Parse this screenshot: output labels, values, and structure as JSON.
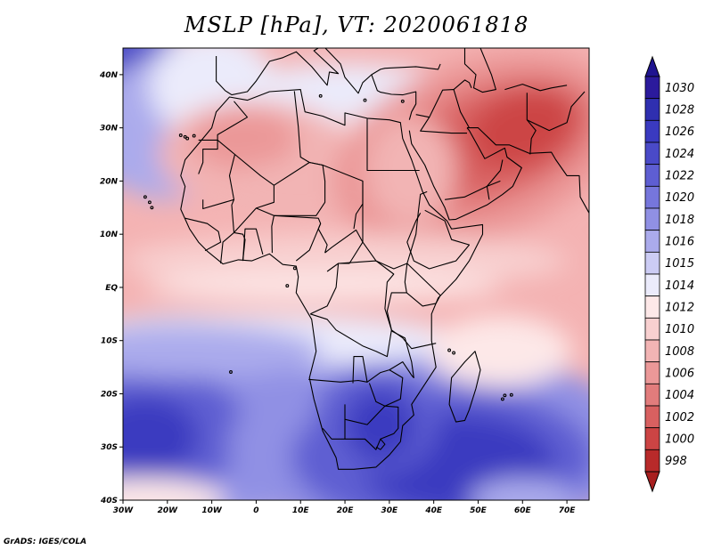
{
  "title": "MSLP [hPa], VT: 2020061818",
  "footer": "GrADS: IGES/COLA",
  "axes": {
    "lat_ticks": [
      {
        "value": 40,
        "label": "40N"
      },
      {
        "value": 30,
        "label": "30N"
      },
      {
        "value": 20,
        "label": "20N"
      },
      {
        "value": 10,
        "label": "10N"
      },
      {
        "value": 0,
        "label": "EQ"
      },
      {
        "value": -10,
        "label": "10S"
      },
      {
        "value": -20,
        "label": "20S"
      },
      {
        "value": -30,
        "label": "30S"
      },
      {
        "value": -40,
        "label": "40S"
      }
    ],
    "lon_ticks": [
      {
        "value": -30,
        "label": "30W"
      },
      {
        "value": -20,
        "label": "20W"
      },
      {
        "value": -10,
        "label": "10W"
      },
      {
        "value": 0,
        "label": "0"
      },
      {
        "value": 10,
        "label": "10E"
      },
      {
        "value": 20,
        "label": "20E"
      },
      {
        "value": 30,
        "label": "30E"
      },
      {
        "value": 40,
        "label": "40E"
      },
      {
        "value": 50,
        "label": "50E"
      },
      {
        "value": 60,
        "label": "60E"
      },
      {
        "value": 70,
        "label": "70E"
      }
    ],
    "lat_range": [
      -40,
      45
    ],
    "lon_range": [
      -30,
      75
    ]
  },
  "colorbar": {
    "levels": [
      {
        "label": "1030",
        "color": "#2b1a9c"
      },
      {
        "label": "1028",
        "color": "#2f2fb0"
      },
      {
        "label": "1026",
        "color": "#3a3ac0"
      },
      {
        "label": "1024",
        "color": "#4a4ac8"
      },
      {
        "label": "1022",
        "color": "#5e5ed2"
      },
      {
        "label": "1020",
        "color": "#7676dc"
      },
      {
        "label": "1018",
        "color": "#9090e4"
      },
      {
        "label": "1016",
        "color": "#ababec"
      },
      {
        "label": "1015",
        "color": "#ccccf4"
      },
      {
        "label": "1014",
        "color": "#ebebfb"
      },
      {
        "label": "1012",
        "color": "#fde8e8"
      },
      {
        "label": "1010",
        "color": "#f8d0d0"
      },
      {
        "label": "1008",
        "color": "#f2b4b4"
      },
      {
        "label": "1006",
        "color": "#eb9898"
      },
      {
        "label": "1004",
        "color": "#e27c7c"
      },
      {
        "label": "1002",
        "color": "#d86060"
      },
      {
        "label": "1000",
        "color": "#cc4444"
      },
      {
        "label": "998",
        "color": "#b82a2a"
      }
    ],
    "top_triangle_color": "#1f1490",
    "bottom_triangle_color": "#a81f1f"
  },
  "map_background_color": "#f4b3b3"
}
